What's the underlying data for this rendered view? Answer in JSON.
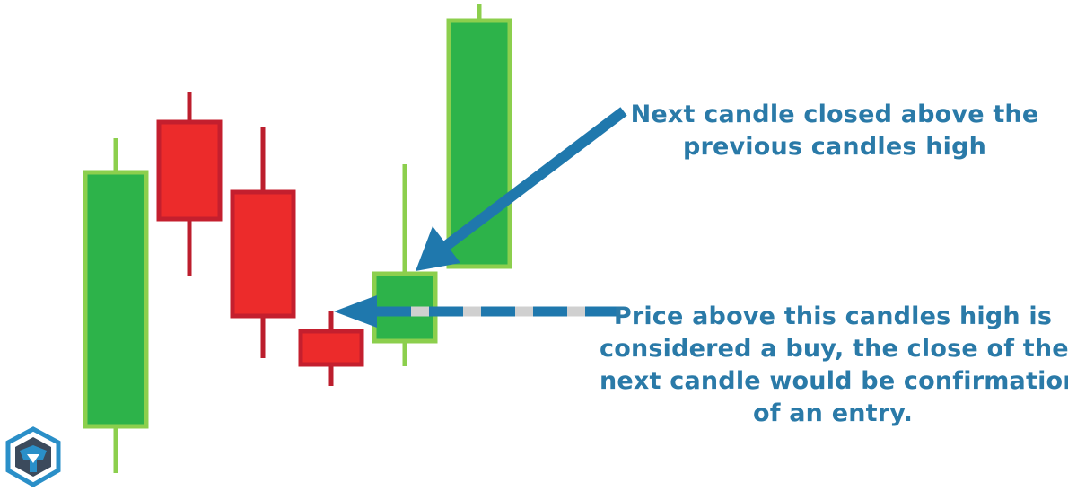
{
  "diagram": {
    "candles": [
      {
        "id": "c1",
        "direction": "bullish",
        "open": 72,
        "close": 355,
        "high": 393,
        "low": 20
      },
      {
        "id": "c2",
        "direction": "bearish",
        "open": 411,
        "close": 303,
        "high": 445,
        "low": 239
      },
      {
        "id": "c3",
        "direction": "bearish",
        "open": 333,
        "close": 195,
        "high": 405,
        "low": 148
      },
      {
        "id": "c4",
        "direction": "bearish",
        "open": 178,
        "close": 141,
        "high": 201,
        "low": 117
      },
      {
        "id": "c5",
        "direction": "bullish",
        "open": 167,
        "close": 242,
        "high": 364,
        "low": 139
      },
      {
        "id": "c6",
        "direction": "bullish",
        "open": 250,
        "close": 524,
        "high": 542,
        "low": 250
      }
    ],
    "colors": {
      "bullish_fill": "#2db34a",
      "bullish_border": "#8ccf4d",
      "bearish_fill": "#ec2b2b",
      "bearish_border": "#c41f2e",
      "bearish_wick": "#bc1e2d",
      "arrow": "#1f78ad",
      "dash_light": "#d0d0d0",
      "annotation_text": "#2a7aa8",
      "logo_outline": "#2a8fc8"
    },
    "annotations": {
      "top": {
        "lines": [
          "Next candle closed above the",
          "previous candles high"
        ]
      },
      "bottom": {
        "lines": [
          "Price above this candles high is",
          "considered a buy, the close of the",
          "next candle would be confirmation",
          "of an entry."
        ]
      }
    },
    "logo": {
      "icon": "shield-helmet-icon"
    }
  }
}
